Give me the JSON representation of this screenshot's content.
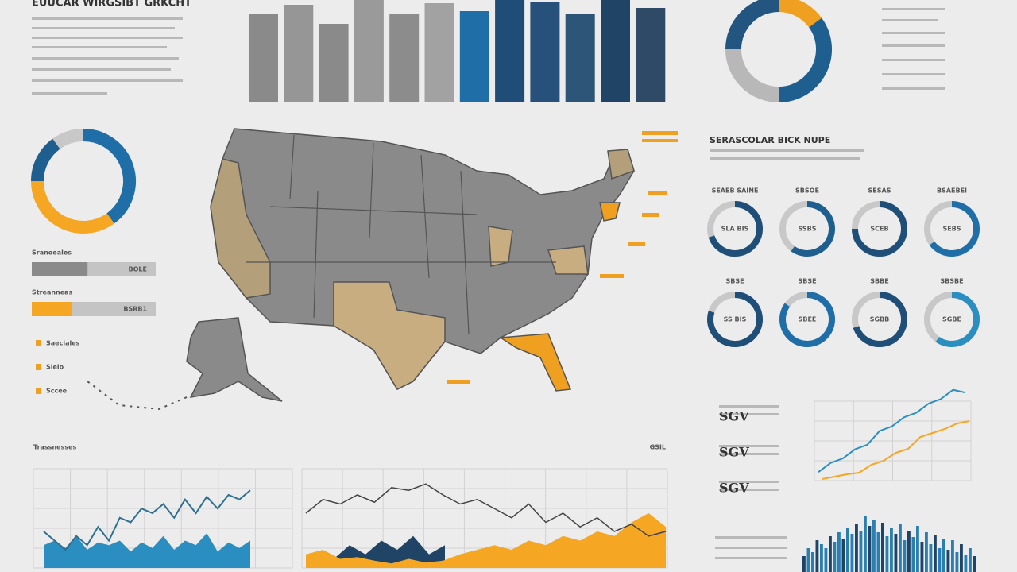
{
  "title": "EUUCAR WIRGSIBT GRKCHT",
  "bar_chart": {
    "values": [
      110,
      122,
      98,
      128,
      110,
      124,
      114,
      128,
      126,
      110,
      128,
      118
    ],
    "ylim": [
      0,
      130
    ],
    "colors": [
      "#8a8a8a",
      "#969696",
      "#8a8a8a",
      "#9a9a9a",
      "#8c8c8c",
      "#a2a2a2",
      "#1f6ea8",
      "#1f4d78",
      "#27507a",
      "#2d5578",
      "#1f4466",
      "#2f4a66"
    ]
  },
  "ring_top": {
    "values": [
      15,
      35,
      25,
      25
    ],
    "colors": [
      "#f0a020",
      "#1f5f8f",
      "#b8b8b8",
      "#22557f"
    ]
  },
  "ring_left": {
    "values": [
      40,
      35,
      15,
      10
    ],
    "colors": [
      "#1f6ea8",
      "#f5a623",
      "#1f5f8f",
      "#c8c8c8"
    ]
  },
  "progress": [
    {
      "label": "Sranoeales",
      "value_text": "BOLE",
      "value": 45,
      "color": "#8a8a8a"
    },
    {
      "label": "Streanneas",
      "value_text": "BSRB1",
      "value": 32,
      "color": "#f5a623"
    }
  ],
  "legend_left": [
    "Saeciales",
    "Sielo",
    "Sccee"
  ],
  "section_title": "SERASCOLAR BICK NUPE",
  "ring_grid": [
    {
      "label": "SEAEB SAINE",
      "center": "SLA BIS",
      "value": 70,
      "color": "#1f4f78"
    },
    {
      "label": "SBSOE",
      "center": "SSBS",
      "value": 60,
      "color": "#1f5f8f"
    },
    {
      "label": "SESAS",
      "center": "SCEB",
      "value": 75,
      "color": "#1f4f78"
    },
    {
      "label": "BSAEBEI",
      "center": "SEBS",
      "value": 65,
      "color": "#1f6ea8"
    },
    {
      "label": "SBSE",
      "center": "SS BIS",
      "value": 80,
      "color": "#1f4f78"
    },
    {
      "label": "SBSE",
      "center": "SBEE",
      "value": 85,
      "color": "#1f6ea8"
    },
    {
      "label": "SBBE",
      "center": "SGBB",
      "value": 70,
      "color": "#1f4f78"
    },
    {
      "label": "SBSBE",
      "center": "SGBE",
      "value": 60,
      "color": "#2a8fc0"
    }
  ],
  "line_left": {
    "title": "Trassnesses",
    "ylim": [
      0,
      100
    ],
    "line": [
      40,
      30,
      20,
      35,
      25,
      45,
      30,
      55,
      50,
      65,
      60,
      70,
      55,
      75,
      60,
      78,
      65,
      80,
      75,
      85
    ],
    "area": [
      25,
      30,
      22,
      35,
      20,
      28,
      25,
      30,
      18,
      28,
      22,
      35,
      20,
      30,
      25,
      38,
      18,
      28,
      22,
      30
    ]
  },
  "line_mid": {
    "label": "GSIL",
    "ylim": [
      0,
      100
    ],
    "line": [
      60,
      75,
      70,
      80,
      72,
      88,
      85,
      92,
      80,
      70,
      75,
      65,
      55,
      70,
      50,
      60,
      45,
      55,
      40,
      48,
      35,
      40
    ],
    "area_orange": [
      15,
      20,
      10,
      12,
      8,
      5,
      10,
      6,
      8,
      15,
      20,
      25,
      20,
      30,
      25,
      35,
      30,
      40,
      35,
      50,
      60,
      45
    ],
    "area_navy": [
      10,
      25,
      15,
      30,
      20,
      35,
      15,
      25
    ]
  },
  "line_right": {
    "labels": [
      "SGV",
      "SGV",
      "SGV"
    ],
    "ylim": [
      0,
      100
    ],
    "blue": [
      5,
      15,
      20,
      30,
      35,
      50,
      55,
      65,
      70,
      80,
      85,
      95,
      92
    ],
    "orange": [
      2,
      5,
      8,
      10,
      20,
      25,
      35,
      40,
      55,
      60,
      65,
      72,
      75
    ]
  },
  "histogram": {
    "ylim": [
      0,
      80
    ],
    "values": [
      20,
      30,
      25,
      40,
      35,
      30,
      45,
      38,
      50,
      42,
      55,
      48,
      60,
      52,
      70,
      58,
      65,
      50,
      62,
      45,
      55,
      48,
      60,
      40,
      52,
      44,
      58,
      38,
      50,
      35,
      46,
      30,
      42,
      28,
      40,
      25,
      35,
      22,
      30,
      20
    ]
  }
}
